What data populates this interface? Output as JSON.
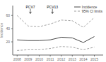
{
  "chart_data": {
    "type": "line",
    "x": [
      2008,
      2009,
      2010,
      2011,
      2012,
      2013,
      2014,
      2015
    ],
    "series": [
      {
        "name": "Incidence",
        "color": "#444444",
        "line_style": "solid",
        "values": [
          23,
          22,
          22,
          23,
          27,
          26,
          19,
          28
        ]
      },
      {
        "name": "95% CI limits",
        "color": "#888888",
        "line_style": "dashed",
        "upper": [
          60,
          44,
          43,
          47,
          53,
          52,
          42,
          57
        ],
        "lower": [
          7,
          8,
          8,
          10,
          13,
          12,
          8,
          12
        ]
      }
    ],
    "ylabel": "Incidence",
    "xlim": [
      2007.6,
      2015.8
    ],
    "xticks": [
      2008,
      2009,
      2010,
      2011,
      2012,
      2013,
      2014,
      2015
    ],
    "ylim": [
      0,
      75
    ],
    "yticks": [
      20,
      40,
      60
    ],
    "grid": false,
    "legend": "upper right",
    "annotations": [
      {
        "text": "PCV7",
        "x": 2009.2,
        "y": 71,
        "arrow_from": 70,
        "arrow_to": 63
      },
      {
        "text": "PCV13",
        "x": 2011.2,
        "y": 71,
        "arrow_from": 70,
        "arrow_to": 63
      }
    ]
  }
}
